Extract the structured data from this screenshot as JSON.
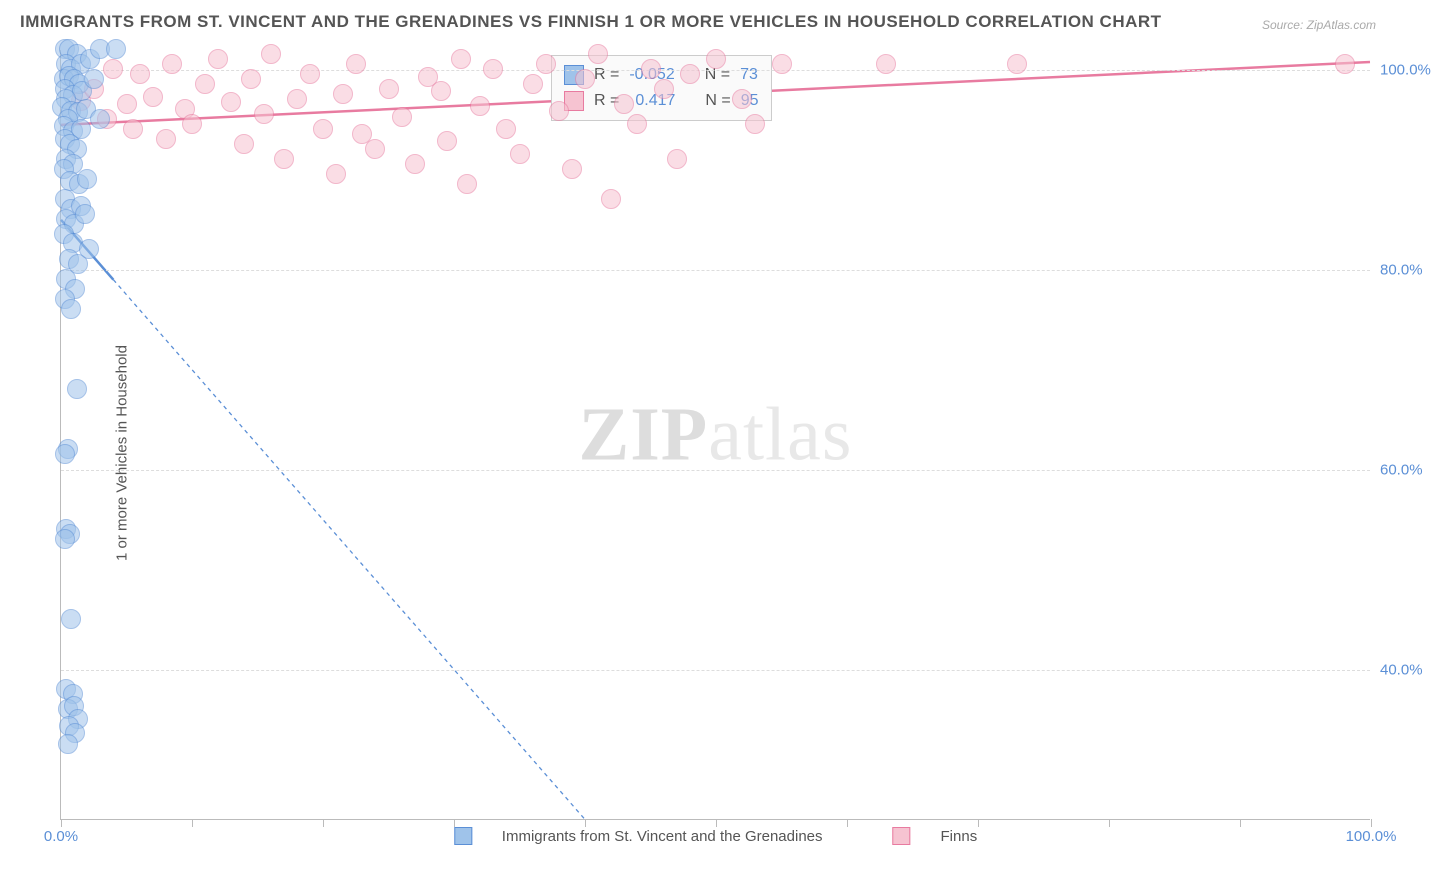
{
  "title": "IMMIGRANTS FROM ST. VINCENT AND THE GRENADINES VS FINNISH 1 OR MORE VEHICLES IN HOUSEHOLD CORRELATION CHART",
  "source": "Source: ZipAtlas.com",
  "y_axis_label": "1 or more Vehicles in Household",
  "watermark": {
    "zip": "ZIP",
    "atlas": "atlas"
  },
  "legend_bottom": {
    "series1_label": "Immigrants from St. Vincent and the Grenadines",
    "series2_label": "Finns"
  },
  "stat_box": {
    "series1": {
      "r_label": "R = ",
      "r_value": "-0.052",
      "n_label": "N = ",
      "n_value": "73"
    },
    "series2": {
      "r_label": "R = ",
      "r_value": "0.417",
      "n_label": "N = ",
      "n_value": "95"
    }
  },
  "colors": {
    "blue_fill": "#9fc3ea",
    "blue_stroke": "#5b8fd6",
    "pink_fill": "#f6c3d1",
    "pink_stroke": "#e87ba0",
    "grid": "#dddddd",
    "axis": "#bbbbbb",
    "tick_text": "#5b8fd6",
    "title_text": "#555555",
    "bg": "#ffffff"
  },
  "chart": {
    "type": "scatter",
    "xlim": [
      0,
      100
    ],
    "ylim": [
      25,
      102
    ],
    "y_ticks": [
      {
        "value": 40,
        "label": "40.0%"
      },
      {
        "value": 60,
        "label": "60.0%"
      },
      {
        "value": 80,
        "label": "80.0%"
      },
      {
        "value": 100,
        "label": "100.0%"
      }
    ],
    "x_ticks_minor": [
      0,
      10,
      20,
      30,
      40,
      50,
      60,
      70,
      80,
      90,
      100
    ],
    "x_tick_labels": [
      {
        "value": 0,
        "label": "0.0%"
      },
      {
        "value": 100,
        "label": "100.0%"
      }
    ],
    "marker_size": 20,
    "marker_opacity": 0.55,
    "series_blue": {
      "trend": {
        "x1": 0,
        "y1": 85,
        "x2": 40,
        "y2": 25,
        "dash": "4 4",
        "solid_to_x": 4
      },
      "points": [
        [
          0.3,
          102
        ],
        [
          0.6,
          102
        ],
        [
          1.2,
          101.5
        ],
        [
          0.4,
          100.5
        ],
        [
          0.8,
          100
        ],
        [
          1.5,
          100.5
        ],
        [
          2.2,
          101
        ],
        [
          3.0,
          102
        ],
        [
          0.2,
          99
        ],
        [
          0.6,
          99.3
        ],
        [
          1.0,
          99
        ],
        [
          1.4,
          98.5
        ],
        [
          0.3,
          98
        ],
        [
          0.9,
          97.4
        ],
        [
          1.6,
          97.8
        ],
        [
          2.5,
          99
        ],
        [
          4.2,
          102
        ],
        [
          0.4,
          97
        ],
        [
          0.1,
          96.2
        ],
        [
          0.8,
          95.8
        ],
        [
          1.3,
          95.7
        ],
        [
          1.9,
          96
        ],
        [
          0.5,
          95
        ],
        [
          0.2,
          94.3
        ],
        [
          0.9,
          93.8
        ],
        [
          1.5,
          94
        ],
        [
          3.0,
          95
        ],
        [
          0.3,
          93
        ],
        [
          0.7,
          92.5
        ],
        [
          1.2,
          92
        ],
        [
          0.4,
          91
        ],
        [
          0.9,
          90.5
        ],
        [
          0.2,
          90
        ],
        [
          0.7,
          88.8
        ],
        [
          1.4,
          88.5
        ],
        [
          2.0,
          89
        ],
        [
          0.3,
          87
        ],
        [
          0.8,
          86
        ],
        [
          1.5,
          86.3
        ],
        [
          0.4,
          85
        ],
        [
          1.0,
          84.5
        ],
        [
          1.8,
          85.5
        ],
        [
          0.2,
          83.5
        ],
        [
          0.9,
          82.6
        ],
        [
          0.6,
          81
        ],
        [
          1.3,
          80.5
        ],
        [
          2.1,
          82
        ],
        [
          0.4,
          79
        ],
        [
          1.1,
          78
        ],
        [
          0.3,
          77
        ],
        [
          0.8,
          76
        ],
        [
          1.2,
          68
        ],
        [
          0.5,
          62
        ],
        [
          0.3,
          61.5
        ],
        [
          0.4,
          54
        ],
        [
          0.7,
          53.5
        ],
        [
          0.3,
          53
        ],
        [
          0.8,
          45
        ],
        [
          0.4,
          38
        ],
        [
          0.9,
          37.5
        ],
        [
          0.5,
          36
        ],
        [
          1.0,
          36.3
        ],
        [
          1.3,
          35
        ],
        [
          0.6,
          34.3
        ],
        [
          1.1,
          33.6
        ],
        [
          0.5,
          32.5
        ]
      ]
    },
    "series_pink": {
      "trend": {
        "x1": 0,
        "y1": 94.5,
        "x2": 100,
        "y2": 100.8
      },
      "points": [
        [
          1.5,
          96.8
        ],
        [
          2.5,
          98
        ],
        [
          3.5,
          95
        ],
        [
          4.0,
          100
        ],
        [
          5.0,
          96.5
        ],
        [
          5.5,
          94
        ],
        [
          6.0,
          99.5
        ],
        [
          7.0,
          97.2
        ],
        [
          8.0,
          93
        ],
        [
          8.5,
          100.5
        ],
        [
          9.5,
          96
        ],
        [
          10.0,
          94.5
        ],
        [
          11.0,
          98.5
        ],
        [
          12.0,
          101
        ],
        [
          13.0,
          96.7
        ],
        [
          14.0,
          92.5
        ],
        [
          14.5,
          99
        ],
        [
          15.5,
          95.5
        ],
        [
          16.0,
          101.5
        ],
        [
          17.0,
          91
        ],
        [
          18.0,
          97
        ],
        [
          19.0,
          99.5
        ],
        [
          20.0,
          94
        ],
        [
          21.0,
          89.5
        ],
        [
          21.5,
          97.5
        ],
        [
          22.5,
          100.5
        ],
        [
          23.0,
          93.5
        ],
        [
          24.0,
          92
        ],
        [
          25.0,
          98
        ],
        [
          26.0,
          95.2
        ],
        [
          27.0,
          90.5
        ],
        [
          28.0,
          99.2
        ],
        [
          29.0,
          97.8
        ],
        [
          29.5,
          92.8
        ],
        [
          30.5,
          101
        ],
        [
          31.0,
          88.5
        ],
        [
          32.0,
          96.3
        ],
        [
          33.0,
          100
        ],
        [
          34.0,
          94
        ],
        [
          35.0,
          91.5
        ],
        [
          36.0,
          98.5
        ],
        [
          37.0,
          100.5
        ],
        [
          38.0,
          95.8
        ],
        [
          39.0,
          90
        ],
        [
          40.0,
          99
        ],
        [
          41.0,
          101.5
        ],
        [
          42.0,
          87
        ],
        [
          43.0,
          96.5
        ],
        [
          44.0,
          94.5
        ],
        [
          45.0,
          100
        ],
        [
          46.0,
          98
        ],
        [
          47.0,
          91
        ],
        [
          48.0,
          99.5
        ],
        [
          50.0,
          101
        ],
        [
          52.0,
          97
        ],
        [
          53.0,
          94.5
        ],
        [
          55.0,
          100.5
        ],
        [
          63.0,
          100.5
        ],
        [
          73.0,
          100.5
        ],
        [
          98.0,
          100.5
        ]
      ]
    }
  }
}
